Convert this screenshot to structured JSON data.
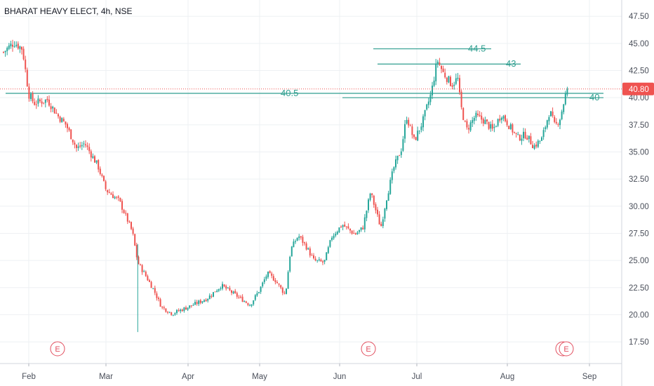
{
  "chart_data": {
    "type": "candlestick",
    "title": "BHARAT HEAVY ELECT, 4h, NSE",
    "y_axis": {
      "min": 15.5,
      "max": 49,
      "ticks": [
        "47.50",
        "45.00",
        "42.50",
        "40.00",
        "37.50",
        "35.00",
        "32.50",
        "30.00",
        "27.50",
        "25.00",
        "22.50",
        "20.00",
        "17.50"
      ]
    },
    "x_axis": {
      "ticks": [
        "Feb",
        "Mar",
        "Apr",
        "May",
        "Jun",
        "Jul",
        "Aug",
        "Sep"
      ]
    },
    "last_price": {
      "value": 40.8,
      "label": "40.80"
    },
    "levels": [
      {
        "label": "44.5",
        "value": 44.5
      },
      {
        "label": "43",
        "value": 43.1
      },
      {
        "label": "40.5",
        "value": 40.4
      },
      {
        "label": "40",
        "value": 40.0
      }
    ],
    "earnings_markers": [
      {
        "label": "E",
        "month": "Feb"
      },
      {
        "label": "E",
        "month": "Jun"
      },
      {
        "label": "E",
        "month": "Aug"
      },
      {
        "label": "E",
        "month": "Aug"
      }
    ],
    "anchors": [
      {
        "month": "Jan",
        "day": 20,
        "price": 44.2
      },
      {
        "month": "Jan",
        "day": 25,
        "price": 45.1
      },
      {
        "month": "Jan",
        "day": 29,
        "price": 44.5
      },
      {
        "month": "Feb",
        "day": 1,
        "price": 40.3
      },
      {
        "month": "Feb",
        "day": 3,
        "price": 39.5
      },
      {
        "month": "Feb",
        "day": 8,
        "price": 39.8
      },
      {
        "month": "Feb",
        "day": 12,
        "price": 38.3
      },
      {
        "month": "Feb",
        "day": 15,
        "price": 37.5
      },
      {
        "month": "Feb",
        "day": 19,
        "price": 35.3
      },
      {
        "month": "Feb",
        "day": 22,
        "price": 35.8
      },
      {
        "month": "Feb",
        "day": 27,
        "price": 33.7
      },
      {
        "month": "Mar",
        "day": 1,
        "price": 31.5
      },
      {
        "month": "Mar",
        "day": 6,
        "price": 30.5
      },
      {
        "month": "Mar",
        "day": 9,
        "price": 28.8
      },
      {
        "month": "Mar",
        "day": 11,
        "price": 27.6
      },
      {
        "month": "Mar",
        "day": 13,
        "price": 24.8
      },
      {
        "month": "Mar",
        "day": 16,
        "price": 23.6
      },
      {
        "month": "Mar",
        "day": 19,
        "price": 22.3
      },
      {
        "month": "Mar",
        "day": 22,
        "price": 20.7
      },
      {
        "month": "Mar",
        "day": 26,
        "price": 20.1
      },
      {
        "month": "Apr",
        "day": 2,
        "price": 20.8
      },
      {
        "month": "Apr",
        "day": 9,
        "price": 21.5
      },
      {
        "month": "Apr",
        "day": 15,
        "price": 22.7
      },
      {
        "month": "Apr",
        "day": 21,
        "price": 21.8
      },
      {
        "month": "Apr",
        "day": 27,
        "price": 20.9
      },
      {
        "month": "May",
        "day": 1,
        "price": 22.3
      },
      {
        "month": "May",
        "day": 4,
        "price": 23.8
      },
      {
        "month": "May",
        "day": 7,
        "price": 23.2
      },
      {
        "month": "May",
        "day": 11,
        "price": 21.8
      },
      {
        "month": "May",
        "day": 13,
        "price": 26.0
      },
      {
        "month": "May",
        "day": 16,
        "price": 27.3
      },
      {
        "month": "May",
        "day": 19,
        "price": 26.3
      },
      {
        "month": "May",
        "day": 22,
        "price": 25.0
      },
      {
        "month": "May",
        "day": 26,
        "price": 24.8
      },
      {
        "month": "May",
        "day": 29,
        "price": 27.2
      },
      {
        "month": "Jun",
        "day": 2,
        "price": 28.3
      },
      {
        "month": "Jun",
        "day": 7,
        "price": 27.4
      },
      {
        "month": "Jun",
        "day": 10,
        "price": 28.0
      },
      {
        "month": "Jun",
        "day": 13,
        "price": 31.3
      },
      {
        "month": "Jun",
        "day": 17,
        "price": 28.0
      },
      {
        "month": "Jun",
        "day": 19,
        "price": 30.5
      },
      {
        "month": "Jun",
        "day": 22,
        "price": 33.5
      },
      {
        "month": "Jun",
        "day": 25,
        "price": 35.3
      },
      {
        "month": "Jun",
        "day": 27,
        "price": 38.3
      },
      {
        "month": "Jun",
        "day": 30,
        "price": 36.0
      },
      {
        "month": "Jul",
        "day": 3,
        "price": 37.8
      },
      {
        "month": "Jul",
        "day": 6,
        "price": 40.5
      },
      {
        "month": "Jul",
        "day": 8,
        "price": 43.5
      },
      {
        "month": "Jul",
        "day": 10,
        "price": 42.3
      },
      {
        "month": "Jul",
        "day": 13,
        "price": 41.2
      },
      {
        "month": "Jul",
        "day": 15,
        "price": 41.8
      },
      {
        "month": "Jul",
        "day": 16,
        "price": 39.3
      },
      {
        "month": "Jul",
        "day": 18,
        "price": 37.0
      },
      {
        "month": "Jul",
        "day": 21,
        "price": 38.3
      },
      {
        "month": "Jul",
        "day": 24,
        "price": 37.9
      },
      {
        "month": "Jul",
        "day": 27,
        "price": 37.0
      },
      {
        "month": "Jul",
        "day": 30,
        "price": 38.5
      },
      {
        "month": "Aug",
        "day": 2,
        "price": 37.3
      },
      {
        "month": "Aug",
        "day": 5,
        "price": 36.3
      },
      {
        "month": "Aug",
        "day": 8,
        "price": 36.6
      },
      {
        "month": "Aug",
        "day": 11,
        "price": 35.5
      },
      {
        "month": "Aug",
        "day": 14,
        "price": 36.2
      },
      {
        "month": "Aug",
        "day": 17,
        "price": 38.8
      },
      {
        "month": "Aug",
        "day": 19,
        "price": 37.3
      },
      {
        "month": "Aug",
        "day": 21,
        "price": 38.2
      },
      {
        "month": "Aug",
        "day": 23,
        "price": 40.3
      },
      {
        "month": "Aug",
        "day": 24,
        "price": 40.8
      }
    ]
  },
  "colors": {
    "up": "#26a69a",
    "down": "#ef5350",
    "level_line": "#2f9e8f",
    "last_price": "#ef5350",
    "earnings": "#e24f5f",
    "grid": "#eef0f3",
    "axis_text": "#4a4f5a"
  }
}
